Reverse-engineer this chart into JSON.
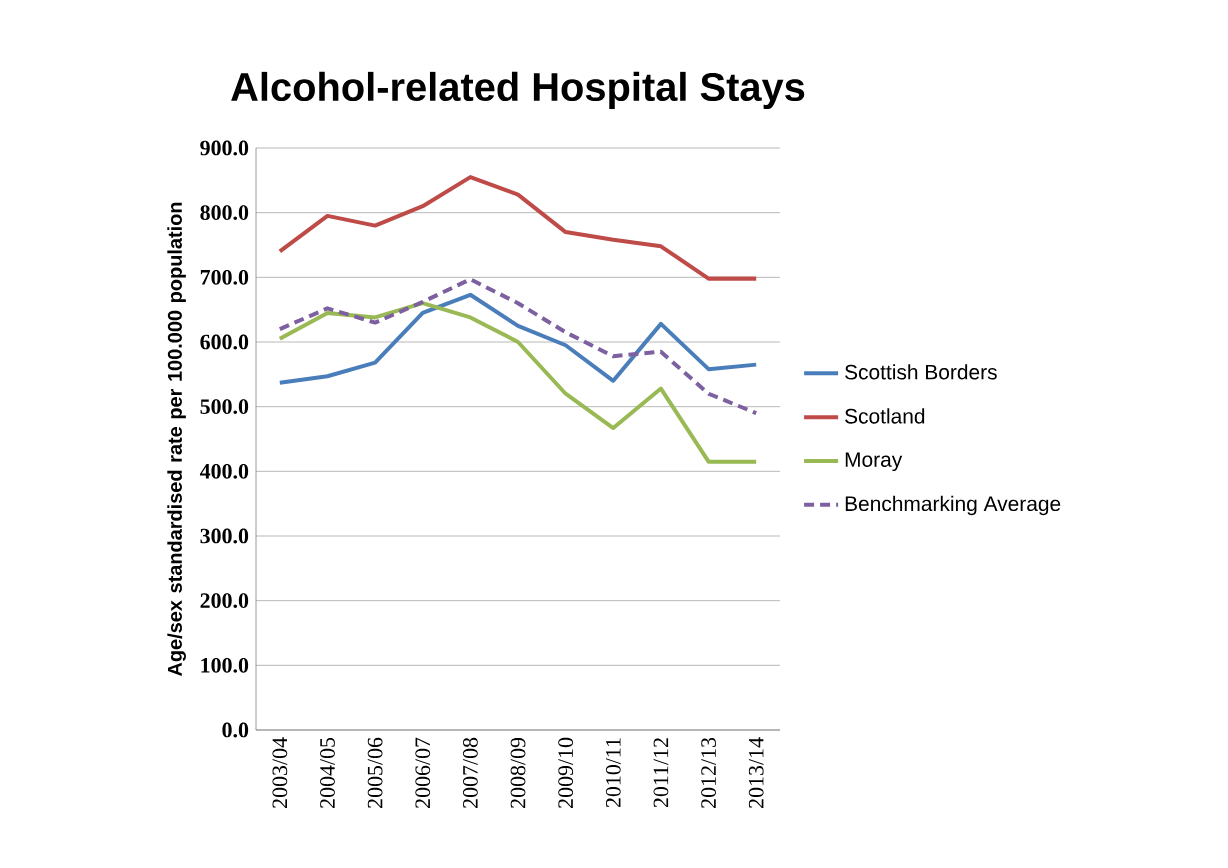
{
  "chart_data": {
    "type": "line",
    "title": "Alcohol-related Hospital Stays",
    "ylabel": "Age/sex standardised rate per 100.000 population",
    "categories": [
      "2003/04",
      "2004/05",
      "2005/06",
      "2006/07",
      "2007/08",
      "2008/09",
      "2009/10",
      "2010/11",
      "2011/12",
      "2012/13",
      "2013/14"
    ],
    "series": [
      {
        "name": "Scottish Borders",
        "color": "#4a7ebb",
        "values": [
          537,
          547,
          568,
          645,
          673,
          625,
          595,
          540,
          628,
          558,
          565
        ]
      },
      {
        "name": "Scotland",
        "color": "#be4b48",
        "values": [
          740,
          795,
          780,
          810,
          855,
          828,
          770,
          758,
          748,
          698,
          698
        ]
      },
      {
        "name": "Moray",
        "color": "#98b954",
        "values": [
          605,
          645,
          638,
          660,
          638,
          600,
          520,
          467,
          528,
          415,
          415
        ]
      },
      {
        "name": "Benchmarking Average",
        "color": "#7d60a0",
        "line_style": "dashed",
        "values": [
          620,
          652,
          630,
          662,
          697,
          660,
          615,
          578,
          585,
          520,
          490
        ]
      }
    ],
    "ylim": [
      0,
      900
    ],
    "yticks": [
      {
        "value": 0,
        "label": "0.0"
      },
      {
        "value": 100,
        "label": "100.0"
      },
      {
        "value": 200,
        "label": "200.0"
      },
      {
        "value": 300,
        "label": "300.0"
      },
      {
        "value": 400,
        "label": "400.0"
      },
      {
        "value": 500,
        "label": "500.0"
      },
      {
        "value": 600,
        "label": "600.0"
      },
      {
        "value": 700,
        "label": "700.0"
      },
      {
        "value": 800,
        "label": "800.0"
      },
      {
        "value": 900,
        "label": "900.0"
      }
    ],
    "grid": "y",
    "legend": "right",
    "marker": "none"
  }
}
